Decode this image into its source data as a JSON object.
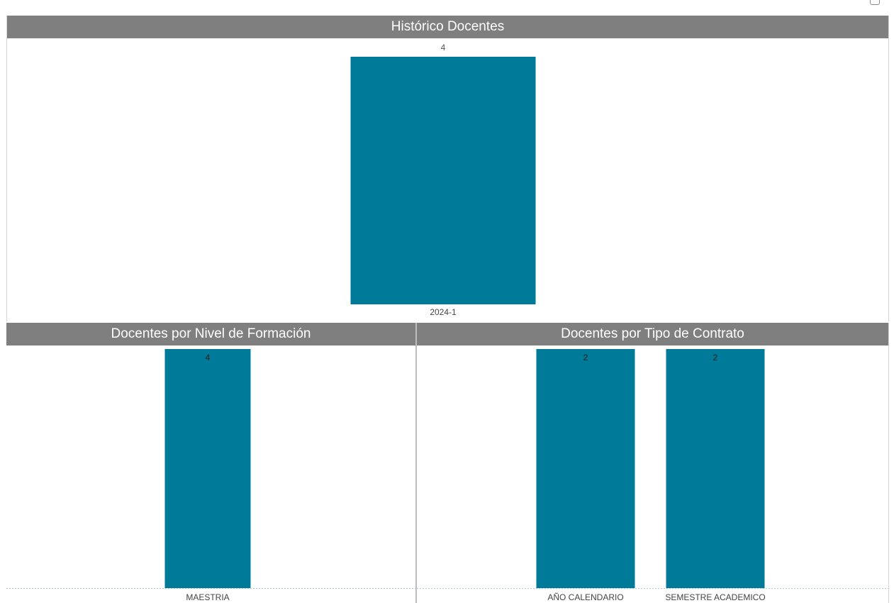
{
  "colors": {
    "bar": "#007a99",
    "header_bg": "#7f7f7f",
    "header_text": "#ffffff"
  },
  "icons": {
    "corner": "expand-icon"
  },
  "chart_data": [
    {
      "type": "bar",
      "title": "Histórico Docentes",
      "categories": [
        "2024-1"
      ],
      "values": [
        4
      ],
      "ylim": [
        0,
        4
      ],
      "xlabel": "",
      "ylabel": "",
      "grid": false
    },
    {
      "type": "bar",
      "title": "Docentes por Nivel de Formación",
      "categories": [
        "MAESTRIA"
      ],
      "values": [
        4
      ],
      "ylim": [
        0,
        4
      ],
      "xlabel": "",
      "ylabel": "",
      "grid": false
    },
    {
      "type": "bar",
      "title": "Docentes por Tipo de Contrato",
      "categories": [
        "AÑO CALENDARIO",
        "SEMESTRE ACADEMICO"
      ],
      "values": [
        2,
        2
      ],
      "ylim": [
        0,
        2
      ],
      "xlabel": "",
      "ylabel": "",
      "grid": false
    }
  ]
}
